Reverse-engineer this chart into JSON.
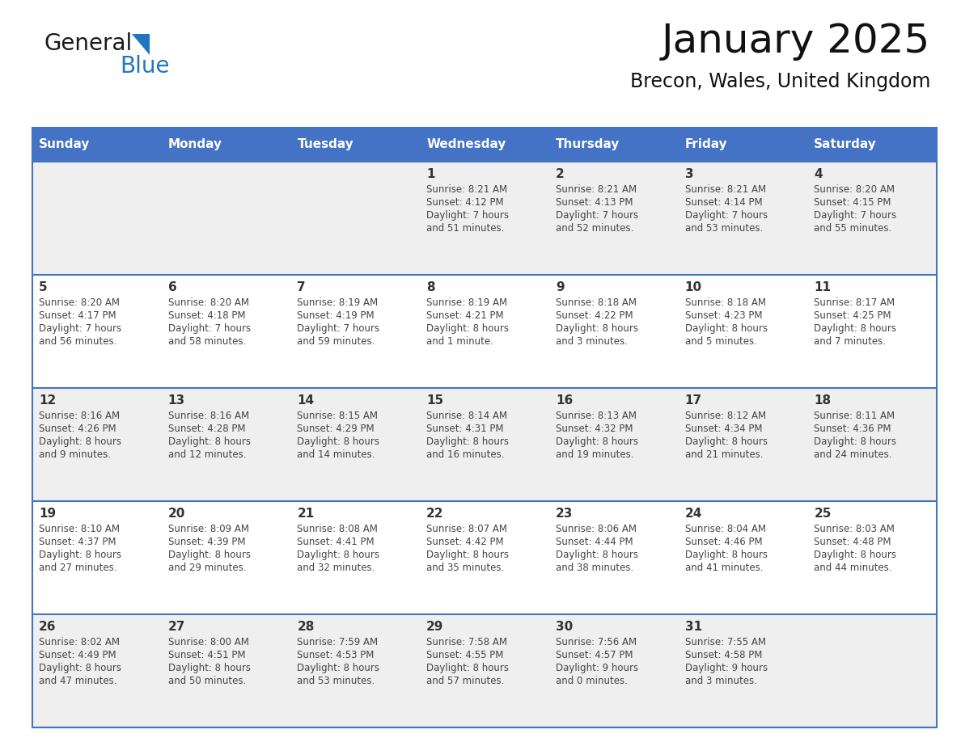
{
  "title": "January 2025",
  "subtitle": "Brecon, Wales, United Kingdom",
  "days_of_week": [
    "Sunday",
    "Monday",
    "Tuesday",
    "Wednesday",
    "Thursday",
    "Friday",
    "Saturday"
  ],
  "header_bg": "#4472C4",
  "header_text": "#FFFFFF",
  "cell_bg_light": "#EFEFEF",
  "cell_bg_white": "#FFFFFF",
  "day_number_color": "#333333",
  "cell_text_color": "#444444",
  "line_color": "#4472C4",
  "calendar_data": [
    [
      null,
      null,
      null,
      {
        "day": 1,
        "sunrise": "8:21 AM",
        "sunset": "4:12 PM",
        "daylight_h": "7 hours",
        "daylight_m": "51 minutes."
      },
      {
        "day": 2,
        "sunrise": "8:21 AM",
        "sunset": "4:13 PM",
        "daylight_h": "7 hours",
        "daylight_m": "52 minutes."
      },
      {
        "day": 3,
        "sunrise": "8:21 AM",
        "sunset": "4:14 PM",
        "daylight_h": "7 hours",
        "daylight_m": "53 minutes."
      },
      {
        "day": 4,
        "sunrise": "8:20 AM",
        "sunset": "4:15 PM",
        "daylight_h": "7 hours",
        "daylight_m": "55 minutes."
      }
    ],
    [
      {
        "day": 5,
        "sunrise": "8:20 AM",
        "sunset": "4:17 PM",
        "daylight_h": "7 hours",
        "daylight_m": "56 minutes."
      },
      {
        "day": 6,
        "sunrise": "8:20 AM",
        "sunset": "4:18 PM",
        "daylight_h": "7 hours",
        "daylight_m": "58 minutes."
      },
      {
        "day": 7,
        "sunrise": "8:19 AM",
        "sunset": "4:19 PM",
        "daylight_h": "7 hours",
        "daylight_m": "59 minutes."
      },
      {
        "day": 8,
        "sunrise": "8:19 AM",
        "sunset": "4:21 PM",
        "daylight_h": "8 hours",
        "daylight_m": "1 minute."
      },
      {
        "day": 9,
        "sunrise": "8:18 AM",
        "sunset": "4:22 PM",
        "daylight_h": "8 hours",
        "daylight_m": "3 minutes."
      },
      {
        "day": 10,
        "sunrise": "8:18 AM",
        "sunset": "4:23 PM",
        "daylight_h": "8 hours",
        "daylight_m": "5 minutes."
      },
      {
        "day": 11,
        "sunrise": "8:17 AM",
        "sunset": "4:25 PM",
        "daylight_h": "8 hours",
        "daylight_m": "7 minutes."
      }
    ],
    [
      {
        "day": 12,
        "sunrise": "8:16 AM",
        "sunset": "4:26 PM",
        "daylight_h": "8 hours",
        "daylight_m": "9 minutes."
      },
      {
        "day": 13,
        "sunrise": "8:16 AM",
        "sunset": "4:28 PM",
        "daylight_h": "8 hours",
        "daylight_m": "12 minutes."
      },
      {
        "day": 14,
        "sunrise": "8:15 AM",
        "sunset": "4:29 PM",
        "daylight_h": "8 hours",
        "daylight_m": "14 minutes."
      },
      {
        "day": 15,
        "sunrise": "8:14 AM",
        "sunset": "4:31 PM",
        "daylight_h": "8 hours",
        "daylight_m": "16 minutes."
      },
      {
        "day": 16,
        "sunrise": "8:13 AM",
        "sunset": "4:32 PM",
        "daylight_h": "8 hours",
        "daylight_m": "19 minutes."
      },
      {
        "day": 17,
        "sunrise": "8:12 AM",
        "sunset": "4:34 PM",
        "daylight_h": "8 hours",
        "daylight_m": "21 minutes."
      },
      {
        "day": 18,
        "sunrise": "8:11 AM",
        "sunset": "4:36 PM",
        "daylight_h": "8 hours",
        "daylight_m": "24 minutes."
      }
    ],
    [
      {
        "day": 19,
        "sunrise": "8:10 AM",
        "sunset": "4:37 PM",
        "daylight_h": "8 hours",
        "daylight_m": "27 minutes."
      },
      {
        "day": 20,
        "sunrise": "8:09 AM",
        "sunset": "4:39 PM",
        "daylight_h": "8 hours",
        "daylight_m": "29 minutes."
      },
      {
        "day": 21,
        "sunrise": "8:08 AM",
        "sunset": "4:41 PM",
        "daylight_h": "8 hours",
        "daylight_m": "32 minutes."
      },
      {
        "day": 22,
        "sunrise": "8:07 AM",
        "sunset": "4:42 PM",
        "daylight_h": "8 hours",
        "daylight_m": "35 minutes."
      },
      {
        "day": 23,
        "sunrise": "8:06 AM",
        "sunset": "4:44 PM",
        "daylight_h": "8 hours",
        "daylight_m": "38 minutes."
      },
      {
        "day": 24,
        "sunrise": "8:04 AM",
        "sunset": "4:46 PM",
        "daylight_h": "8 hours",
        "daylight_m": "41 minutes."
      },
      {
        "day": 25,
        "sunrise": "8:03 AM",
        "sunset": "4:48 PM",
        "daylight_h": "8 hours",
        "daylight_m": "44 minutes."
      }
    ],
    [
      {
        "day": 26,
        "sunrise": "8:02 AM",
        "sunset": "4:49 PM",
        "daylight_h": "8 hours",
        "daylight_m": "47 minutes."
      },
      {
        "day": 27,
        "sunrise": "8:00 AM",
        "sunset": "4:51 PM",
        "daylight_h": "8 hours",
        "daylight_m": "50 minutes."
      },
      {
        "day": 28,
        "sunrise": "7:59 AM",
        "sunset": "4:53 PM",
        "daylight_h": "8 hours",
        "daylight_m": "53 minutes."
      },
      {
        "day": 29,
        "sunrise": "7:58 AM",
        "sunset": "4:55 PM",
        "daylight_h": "8 hours",
        "daylight_m": "57 minutes."
      },
      {
        "day": 30,
        "sunrise": "7:56 AM",
        "sunset": "4:57 PM",
        "daylight_h": "9 hours",
        "daylight_m": "0 minutes."
      },
      {
        "day": 31,
        "sunrise": "7:55 AM",
        "sunset": "4:58 PM",
        "daylight_h": "9 hours",
        "daylight_m": "3 minutes."
      },
      null
    ]
  ],
  "logo_color_general": "#1a1a1a",
  "logo_color_blue": "#2176C3",
  "logo_triangle_color": "#2176C3",
  "fig_width": 11.88,
  "fig_height": 9.18,
  "dpi": 100
}
